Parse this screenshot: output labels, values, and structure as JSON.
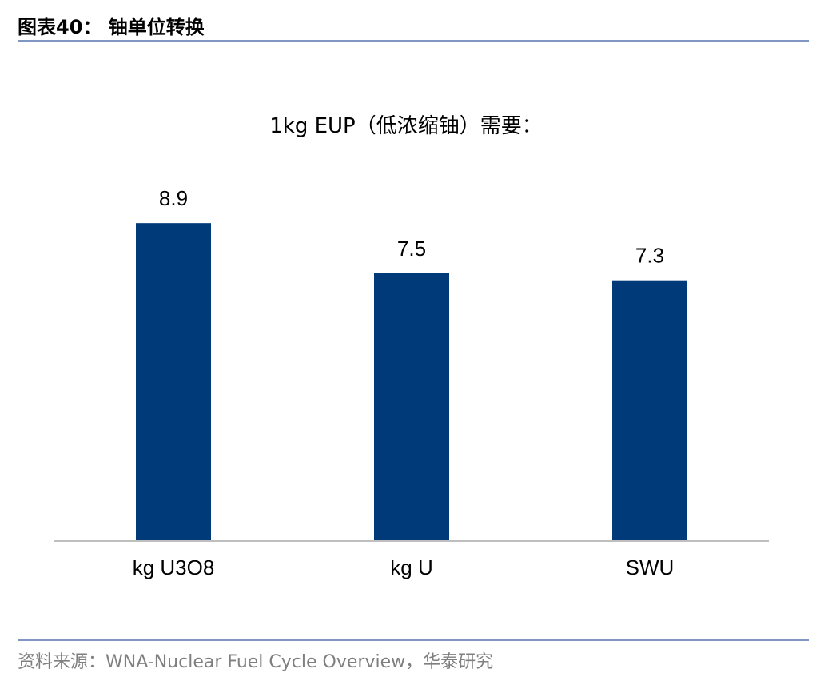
{
  "header": {
    "figure_label": "图表40： 铀单位转换"
  },
  "colors": {
    "bar": "#003a78",
    "axis": "#bfbfbf",
    "rule": "#7f97c2",
    "source_text": "#7f7f7f"
  },
  "chart_data": {
    "type": "bar",
    "title": "1kg EUP（低浓缩铀）需要：",
    "categories": [
      "kg U3O8",
      "kg U",
      "SWU"
    ],
    "values": [
      8.9,
      7.5,
      7.3
    ],
    "data_labels": [
      "8.9",
      "7.5",
      "7.3"
    ],
    "ylim": [
      0,
      10
    ],
    "grid": false,
    "legend": "none"
  },
  "footer": {
    "source": "资料来源：WNA-Nuclear Fuel Cycle Overview，华泰研究"
  }
}
